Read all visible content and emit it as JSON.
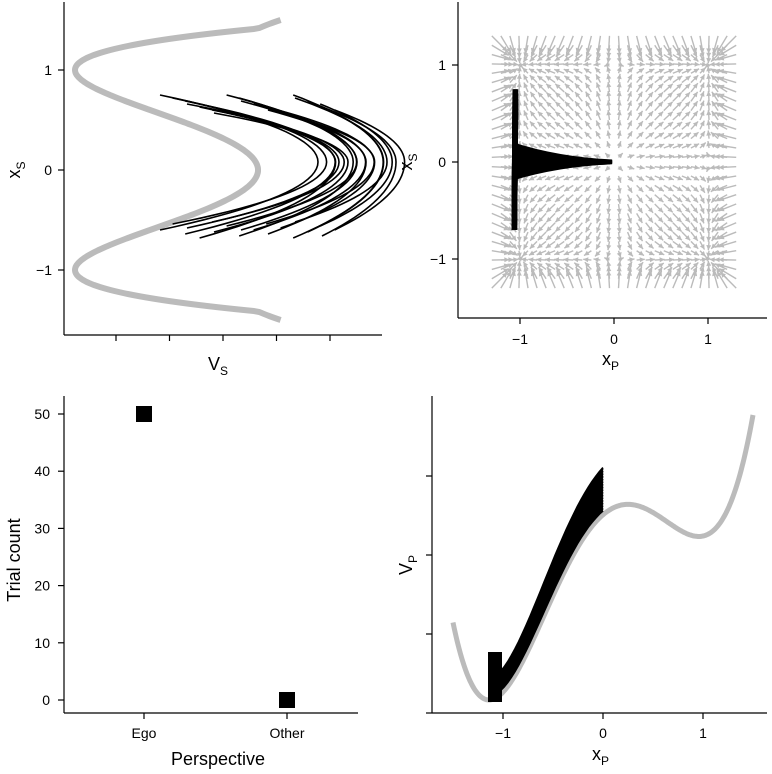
{
  "chart_data": [
    {
      "type": "line",
      "panel": "top-left",
      "xlabel": "V",
      "xlabel_sub": "S",
      "ylabel": "x",
      "ylabel_sub": "S",
      "ylim": [
        -1.5,
        1.5
      ],
      "yticks": [
        "1",
        "0",
        "−1"
      ],
      "yticks_values": [
        1,
        0,
        -1
      ],
      "xticks_count": 5,
      "potential_curve": {
        "color": "#bbbbbb",
        "description_formula": "V = x^4 - 2x^2 (rotated)"
      },
      "trajectory_color": "#000000",
      "trajectory_count": 20
    },
    {
      "type": "scatter",
      "panel": "top-right",
      "xlabel": "x",
      "xlabel_sub": "P",
      "ylabel": "x",
      "ylabel_sub": "S",
      "xlim": [
        -1.5,
        1.5
      ],
      "ylim": [
        -1.5,
        1.5
      ],
      "xticks": [
        "−1",
        "0",
        "1"
      ],
      "xticks_values": [
        -1,
        0,
        1
      ],
      "yticks": [
        "1",
        "0",
        "−1"
      ],
      "yticks_values": [
        1,
        0,
        -1
      ],
      "quiver_color": "#bbbbbb",
      "trajectory_color": "#000000",
      "trajectory_x_range": [
        -1.1,
        0.0
      ],
      "trajectory_y_range": [
        -0.7,
        0.75
      ]
    },
    {
      "type": "scatter",
      "panel": "bottom-left",
      "xlabel": "Perspective",
      "ylabel": "Trial count",
      "categories": [
        "Ego",
        "Other"
      ],
      "values": [
        50,
        0
      ],
      "ylim": [
        -1,
        52
      ],
      "yticks": [
        "0",
        "10",
        "20",
        "30",
        "40",
        "50"
      ],
      "yticks_values": [
        0,
        10,
        20,
        30,
        40,
        50
      ],
      "marker": "square",
      "marker_color": "#000000"
    },
    {
      "type": "line",
      "panel": "bottom-right",
      "xlabel": "x",
      "xlabel_sub": "P",
      "ylabel": "V",
      "ylabel_sub": "P",
      "xlim": [
        -1.6,
        1.6
      ],
      "xticks": [
        "−1",
        "0",
        "1"
      ],
      "xticks_values": [
        -1,
        0,
        1
      ],
      "yticks_count": 4,
      "potential_curve": {
        "color": "#bbbbbb"
      },
      "trajectory_color": "#000000",
      "trajectory_x_range": [
        -1.1,
        0.0
      ]
    }
  ]
}
